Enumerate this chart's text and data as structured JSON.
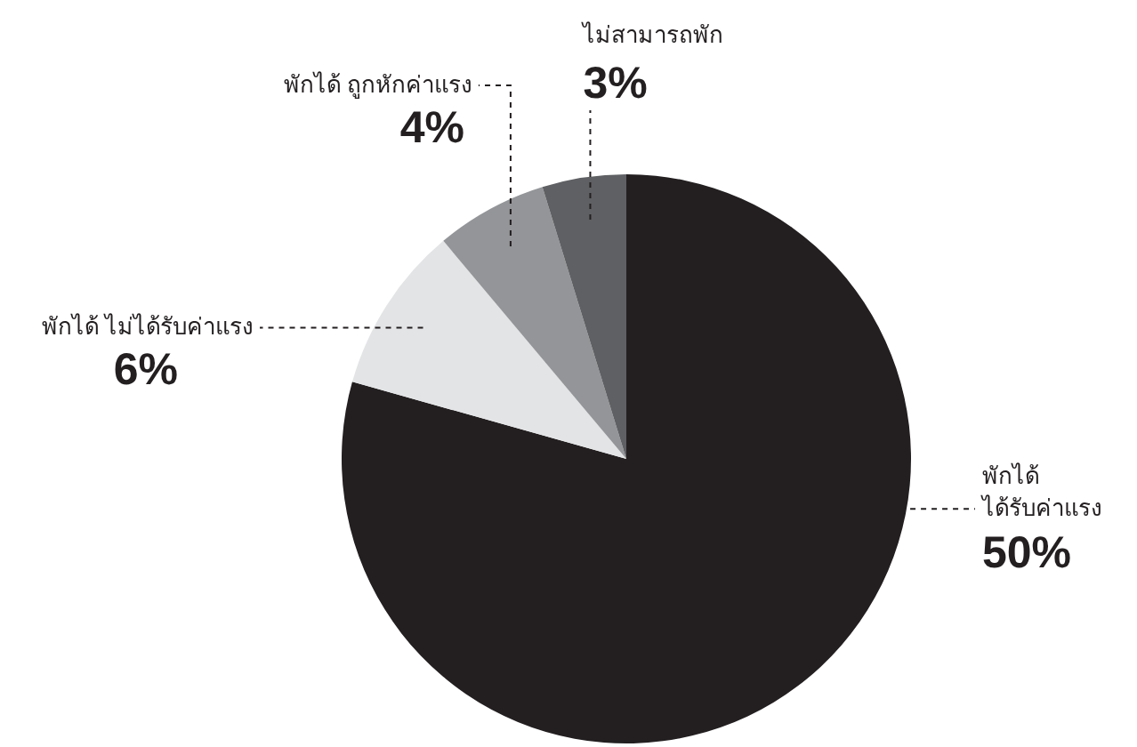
{
  "chart_data": {
    "type": "pie",
    "categories": [
      "พักได้ ได้รับค่าแรง",
      "พักได้ ไม่ได้รับค่าแรง",
      "พักได้ ถูกหักค่าแรง",
      "ไม่สามารถพัก"
    ],
    "values": [
      50,
      6,
      4,
      3
    ],
    "colors": [
      "#231f20",
      "#e3e4e6",
      "#939598",
      "#5f6063"
    ],
    "value_labels": [
      "50%",
      "6%",
      "4%",
      "3%"
    ]
  }
}
